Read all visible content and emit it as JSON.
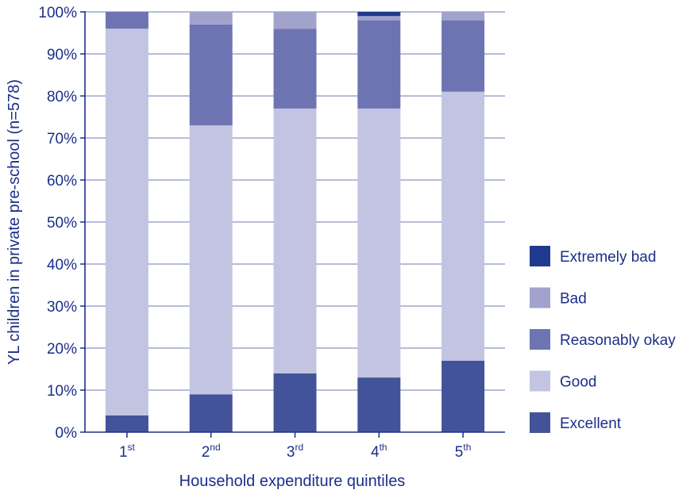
{
  "chart_data": {
    "type": "bar",
    "stacked": true,
    "categories": [
      {
        "base": "1",
        "sup": "st"
      },
      {
        "base": "2",
        "sup": "nd"
      },
      {
        "base": "3",
        "sup": "rd"
      },
      {
        "base": "4",
        "sup": "th"
      },
      {
        "base": "5",
        "sup": "th"
      }
    ],
    "series": [
      {
        "name": "Excellent",
        "color": "#43539a",
        "values": [
          4,
          9,
          14,
          13,
          17
        ]
      },
      {
        "name": "Good",
        "color": "#c3c4e1",
        "values": [
          92,
          64,
          63,
          64,
          64
        ]
      },
      {
        "name": "Reasonably okay",
        "color": "#6e74b2",
        "values": [
          4,
          24,
          19,
          21,
          17
        ]
      },
      {
        "name": "Bad",
        "color": "#a1a3cc",
        "values": [
          0,
          3,
          4,
          1,
          2
        ]
      },
      {
        "name": "Extremely bad",
        "color": "#1f3a8c",
        "values": [
          0,
          0,
          0,
          1,
          0
        ]
      }
    ],
    "legend_order": [
      "Extremely bad",
      "Bad",
      "Reasonably okay",
      "Good",
      "Excellent"
    ],
    "legend_position": "right",
    "xlabel": "Household expenditure quintiles",
    "ylabel": "YL children in private pre-school (n=578)",
    "ylim": [
      0,
      100
    ],
    "yticks": [
      0,
      10,
      20,
      30,
      40,
      50,
      60,
      70,
      80,
      90,
      100
    ],
    "ytick_suffix": "%",
    "grid": true,
    "axis_color": "#1b2f8a",
    "grid_color": "#8a93c4"
  }
}
